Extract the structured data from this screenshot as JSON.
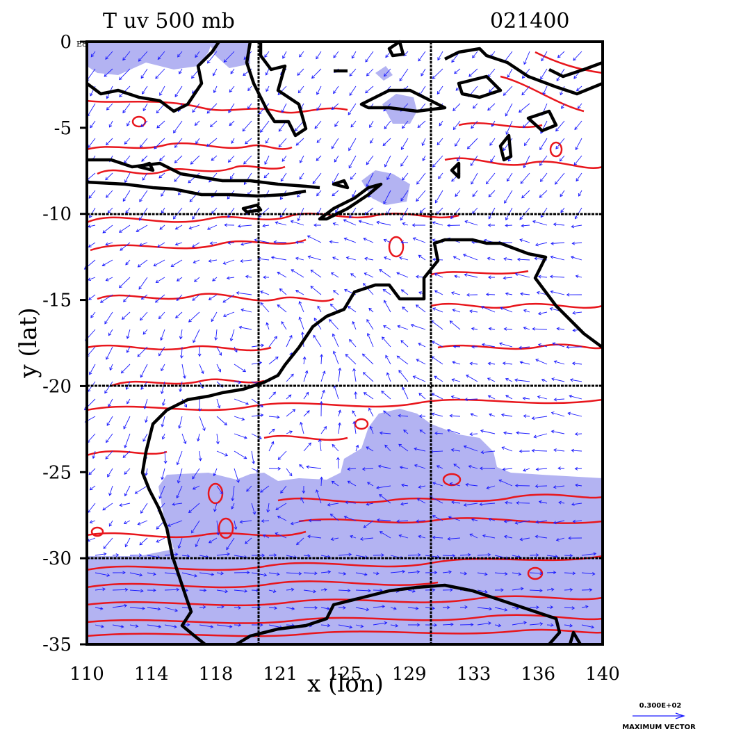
{
  "figure": {
    "title": "T uv 500 mb",
    "timestamp": "021400",
    "xlabel": "x (lon)",
    "ylabel": "y (lat)",
    "corner_label": "E8"
  },
  "axes": {
    "x_ticks": [
      "110",
      "114",
      "118",
      "121",
      "125",
      "129",
      "133",
      "136",
      "140"
    ],
    "y_ticks": [
      "0",
      "-5",
      "-10",
      "-15",
      "-20",
      "-25",
      "-30",
      "-35"
    ],
    "x_range": [
      110,
      140
    ],
    "y_range": [
      -35,
      0
    ],
    "grid_lon": [
      120,
      130
    ],
    "grid_lat": [
      -10,
      -20,
      -30
    ]
  },
  "legend": {
    "value": "0.300E+02",
    "caption": "MAXIMUM VECTOR"
  },
  "colors": {
    "contour": "#e8161c",
    "coast": "#000000",
    "fill": "#b3b3f2",
    "vector": "#1a1aff"
  }
}
